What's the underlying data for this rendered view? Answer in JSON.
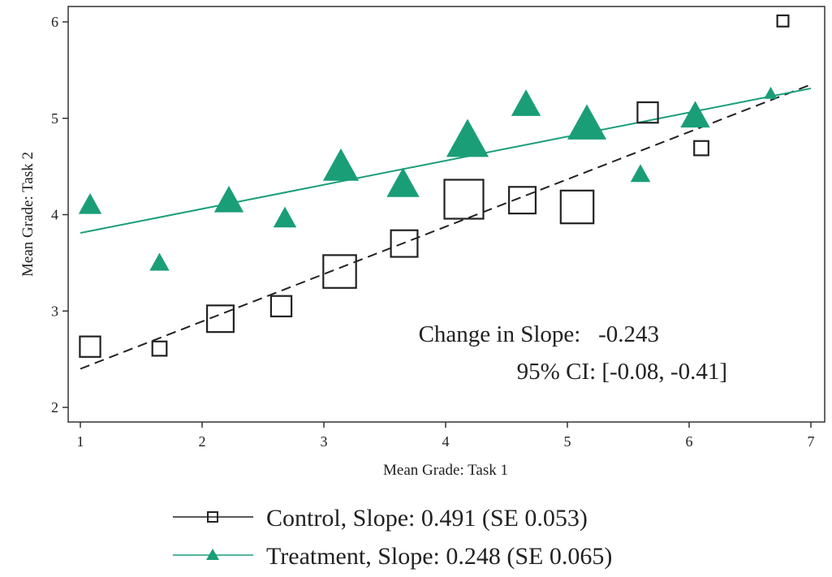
{
  "chart_data": {
    "type": "scatter",
    "xlabel": "Mean Grade: Task 1",
    "ylabel": "Mean Grade: Task 2",
    "xlim": [
      1,
      7
    ],
    "ylim": [
      2,
      6
    ],
    "xticks": [
      1,
      2,
      3,
      4,
      5,
      6,
      7
    ],
    "yticks": [
      2,
      3,
      4,
      5,
      6
    ],
    "grid": false,
    "legend_position": "bottom",
    "series": [
      {
        "name": "Control, Slope: 0.491 (SE 0.053)",
        "marker": "hollow-square",
        "color": "#222222",
        "fit_line": {
          "style": "dashed",
          "x": [
            1,
            7
          ],
          "y": [
            2.4,
            5.35
          ]
        },
        "x": [
          1.08,
          1.65,
          2.15,
          2.65,
          3.13,
          3.66,
          4.15,
          4.63,
          5.08,
          5.66,
          6.1,
          6.77
        ],
        "y": [
          2.63,
          2.61,
          2.92,
          3.05,
          3.41,
          3.7,
          4.16,
          4.15,
          4.08,
          5.06,
          4.69,
          6.01
        ],
        "sizes": [
          2,
          1,
          3,
          2,
          4,
          3,
          5,
          3,
          4,
          2,
          1,
          0.5
        ]
      },
      {
        "name": "Treatment, Slope: 0.248 (SE 0.065)",
        "marker": "filled-triangle",
        "color": "#1a9e78",
        "fit_line": {
          "style": "solid",
          "x": [
            1,
            7
          ],
          "y": [
            3.81,
            5.31
          ]
        },
        "x": [
          1.08,
          1.65,
          2.22,
          2.68,
          3.14,
          3.65,
          4.18,
          4.66,
          5.16,
          5.6,
          6.05,
          6.67
        ],
        "y": [
          4.09,
          3.49,
          4.13,
          3.95,
          4.48,
          4.3,
          4.75,
          5.13,
          4.92,
          4.41,
          5.01,
          5.25
        ],
        "sizes": [
          2,
          1.5,
          3,
          2,
          4,
          3.5,
          5,
          3,
          4.5,
          1.5,
          3,
          0.5
        ]
      }
    ],
    "annotations": [
      "Change in Slope:   -0.243",
      "95% CI: [-0.08, -0.41]"
    ]
  },
  "legend": {
    "control_label": "Control, Slope: 0.491 (SE 0.053)",
    "treatment_label": "Treatment, Slope: 0.248 (SE 0.065)"
  },
  "colors": {
    "control": "#222222",
    "treatment": "#1a9e78",
    "frame": "#333333"
  }
}
